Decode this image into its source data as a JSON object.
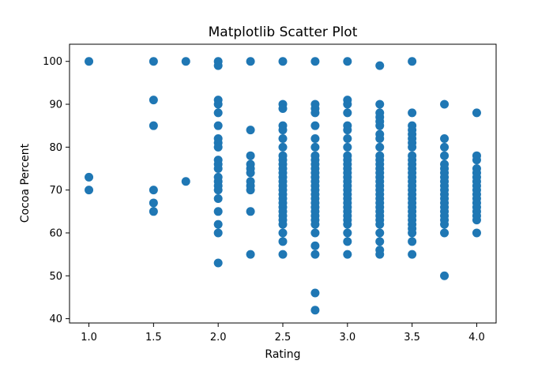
{
  "chart_data": {
    "type": "scatter",
    "title": "Matplotlib Scatter Plot",
    "xlabel": "Rating",
    "ylabel": "Cocoa Percent",
    "xlim": [
      0.85,
      4.15
    ],
    "ylim": [
      39,
      104
    ],
    "xticks": [
      1.0,
      1.5,
      2.0,
      2.5,
      3.0,
      3.5,
      4.0
    ],
    "xtick_labels": [
      "1.0",
      "1.5",
      "2.0",
      "2.5",
      "3.0",
      "3.5",
      "4.0"
    ],
    "yticks": [
      40,
      50,
      60,
      70,
      80,
      90,
      100
    ],
    "ytick_labels": [
      "40",
      "50",
      "60",
      "70",
      "80",
      "90",
      "100"
    ],
    "grid": false,
    "marker_color": "#1f77b4",
    "points": [
      {
        "x": 1.0,
        "y": 100
      },
      {
        "x": 1.0,
        "y": 73
      },
      {
        "x": 1.0,
        "y": 70
      },
      {
        "x": 1.5,
        "y": 100
      },
      {
        "x": 1.5,
        "y": 91
      },
      {
        "x": 1.5,
        "y": 85
      },
      {
        "x": 1.5,
        "y": 70
      },
      {
        "x": 1.5,
        "y": 67
      },
      {
        "x": 1.5,
        "y": 65
      },
      {
        "x": 1.75,
        "y": 100
      },
      {
        "x": 1.75,
        "y": 72
      },
      {
        "x": 2.0,
        "y": 100
      },
      {
        "x": 2.0,
        "y": 99
      },
      {
        "x": 2.0,
        "y": 91
      },
      {
        "x": 2.0,
        "y": 90
      },
      {
        "x": 2.0,
        "y": 88
      },
      {
        "x": 2.0,
        "y": 85
      },
      {
        "x": 2.0,
        "y": 82
      },
      {
        "x": 2.0,
        "y": 81
      },
      {
        "x": 2.0,
        "y": 80
      },
      {
        "x": 2.0,
        "y": 77
      },
      {
        "x": 2.0,
        "y": 76
      },
      {
        "x": 2.0,
        "y": 75
      },
      {
        "x": 2.0,
        "y": 73
      },
      {
        "x": 2.0,
        "y": 72
      },
      {
        "x": 2.0,
        "y": 71
      },
      {
        "x": 2.0,
        "y": 70
      },
      {
        "x": 2.0,
        "y": 68
      },
      {
        "x": 2.0,
        "y": 65
      },
      {
        "x": 2.0,
        "y": 62
      },
      {
        "x": 2.0,
        "y": 60
      },
      {
        "x": 2.0,
        "y": 53
      },
      {
        "x": 2.25,
        "y": 100
      },
      {
        "x": 2.25,
        "y": 84
      },
      {
        "x": 2.25,
        "y": 78
      },
      {
        "x": 2.25,
        "y": 76
      },
      {
        "x": 2.25,
        "y": 75
      },
      {
        "x": 2.25,
        "y": 74
      },
      {
        "x": 2.25,
        "y": 72
      },
      {
        "x": 2.25,
        "y": 71
      },
      {
        "x": 2.25,
        "y": 70
      },
      {
        "x": 2.25,
        "y": 65
      },
      {
        "x": 2.25,
        "y": 55
      },
      {
        "x": 2.5,
        "y": 100
      },
      {
        "x": 2.5,
        "y": 90
      },
      {
        "x": 2.5,
        "y": 89
      },
      {
        "x": 2.5,
        "y": 85
      },
      {
        "x": 2.5,
        "y": 84
      },
      {
        "x": 2.5,
        "y": 82
      },
      {
        "x": 2.5,
        "y": 80
      },
      {
        "x": 2.5,
        "y": 78
      },
      {
        "x": 2.5,
        "y": 77
      },
      {
        "x": 2.5,
        "y": 76
      },
      {
        "x": 2.5,
        "y": 75
      },
      {
        "x": 2.5,
        "y": 74
      },
      {
        "x": 2.5,
        "y": 73
      },
      {
        "x": 2.5,
        "y": 72
      },
      {
        "x": 2.5,
        "y": 71
      },
      {
        "x": 2.5,
        "y": 70
      },
      {
        "x": 2.5,
        "y": 69
      },
      {
        "x": 2.5,
        "y": 68
      },
      {
        "x": 2.5,
        "y": 67
      },
      {
        "x": 2.5,
        "y": 66
      },
      {
        "x": 2.5,
        "y": 65
      },
      {
        "x": 2.5,
        "y": 64
      },
      {
        "x": 2.5,
        "y": 63
      },
      {
        "x": 2.5,
        "y": 62
      },
      {
        "x": 2.5,
        "y": 60
      },
      {
        "x": 2.5,
        "y": 58
      },
      {
        "x": 2.5,
        "y": 55
      },
      {
        "x": 2.75,
        "y": 100
      },
      {
        "x": 2.75,
        "y": 90
      },
      {
        "x": 2.75,
        "y": 89
      },
      {
        "x": 2.75,
        "y": 88
      },
      {
        "x": 2.75,
        "y": 85
      },
      {
        "x": 2.75,
        "y": 82
      },
      {
        "x": 2.75,
        "y": 80
      },
      {
        "x": 2.75,
        "y": 78
      },
      {
        "x": 2.75,
        "y": 77
      },
      {
        "x": 2.75,
        "y": 76
      },
      {
        "x": 2.75,
        "y": 75
      },
      {
        "x": 2.75,
        "y": 74
      },
      {
        "x": 2.75,
        "y": 73
      },
      {
        "x": 2.75,
        "y": 72
      },
      {
        "x": 2.75,
        "y": 71
      },
      {
        "x": 2.75,
        "y": 70
      },
      {
        "x": 2.75,
        "y": 69
      },
      {
        "x": 2.75,
        "y": 68
      },
      {
        "x": 2.75,
        "y": 67
      },
      {
        "x": 2.75,
        "y": 66
      },
      {
        "x": 2.75,
        "y": 65
      },
      {
        "x": 2.75,
        "y": 64
      },
      {
        "x": 2.75,
        "y": 63
      },
      {
        "x": 2.75,
        "y": 62
      },
      {
        "x": 2.75,
        "y": 60
      },
      {
        "x": 2.75,
        "y": 57
      },
      {
        "x": 2.75,
        "y": 55
      },
      {
        "x": 2.75,
        "y": 46
      },
      {
        "x": 2.75,
        "y": 42
      },
      {
        "x": 3.0,
        "y": 100
      },
      {
        "x": 3.0,
        "y": 91
      },
      {
        "x": 3.0,
        "y": 90
      },
      {
        "x": 3.0,
        "y": 88
      },
      {
        "x": 3.0,
        "y": 85
      },
      {
        "x": 3.0,
        "y": 84
      },
      {
        "x": 3.0,
        "y": 82
      },
      {
        "x": 3.0,
        "y": 80
      },
      {
        "x": 3.0,
        "y": 78
      },
      {
        "x": 3.0,
        "y": 77
      },
      {
        "x": 3.0,
        "y": 76
      },
      {
        "x": 3.0,
        "y": 75
      },
      {
        "x": 3.0,
        "y": 74
      },
      {
        "x": 3.0,
        "y": 73
      },
      {
        "x": 3.0,
        "y": 72
      },
      {
        "x": 3.0,
        "y": 71
      },
      {
        "x": 3.0,
        "y": 70
      },
      {
        "x": 3.0,
        "y": 69
      },
      {
        "x": 3.0,
        "y": 68
      },
      {
        "x": 3.0,
        "y": 67
      },
      {
        "x": 3.0,
        "y": 66
      },
      {
        "x": 3.0,
        "y": 65
      },
      {
        "x": 3.0,
        "y": 64
      },
      {
        "x": 3.0,
        "y": 63
      },
      {
        "x": 3.0,
        "y": 62
      },
      {
        "x": 3.0,
        "y": 60
      },
      {
        "x": 3.0,
        "y": 58
      },
      {
        "x": 3.0,
        "y": 55
      },
      {
        "x": 3.25,
        "y": 99
      },
      {
        "x": 3.25,
        "y": 90
      },
      {
        "x": 3.25,
        "y": 88
      },
      {
        "x": 3.25,
        "y": 87
      },
      {
        "x": 3.25,
        "y": 86
      },
      {
        "x": 3.25,
        "y": 85
      },
      {
        "x": 3.25,
        "y": 83
      },
      {
        "x": 3.25,
        "y": 82
      },
      {
        "x": 3.25,
        "y": 80
      },
      {
        "x": 3.25,
        "y": 78
      },
      {
        "x": 3.25,
        "y": 77
      },
      {
        "x": 3.25,
        "y": 76
      },
      {
        "x": 3.25,
        "y": 75
      },
      {
        "x": 3.25,
        "y": 74
      },
      {
        "x": 3.25,
        "y": 73
      },
      {
        "x": 3.25,
        "y": 72
      },
      {
        "x": 3.25,
        "y": 71
      },
      {
        "x": 3.25,
        "y": 70
      },
      {
        "x": 3.25,
        "y": 69
      },
      {
        "x": 3.25,
        "y": 68
      },
      {
        "x": 3.25,
        "y": 67
      },
      {
        "x": 3.25,
        "y": 66
      },
      {
        "x": 3.25,
        "y": 65
      },
      {
        "x": 3.25,
        "y": 64
      },
      {
        "x": 3.25,
        "y": 63
      },
      {
        "x": 3.25,
        "y": 62
      },
      {
        "x": 3.25,
        "y": 60
      },
      {
        "x": 3.25,
        "y": 58
      },
      {
        "x": 3.25,
        "y": 56
      },
      {
        "x": 3.25,
        "y": 55
      },
      {
        "x": 3.5,
        "y": 100
      },
      {
        "x": 3.5,
        "y": 88
      },
      {
        "x": 3.5,
        "y": 85
      },
      {
        "x": 3.5,
        "y": 84
      },
      {
        "x": 3.5,
        "y": 83
      },
      {
        "x": 3.5,
        "y": 82
      },
      {
        "x": 3.5,
        "y": 81
      },
      {
        "x": 3.5,
        "y": 80
      },
      {
        "x": 3.5,
        "y": 78
      },
      {
        "x": 3.5,
        "y": 77
      },
      {
        "x": 3.5,
        "y": 76
      },
      {
        "x": 3.5,
        "y": 75
      },
      {
        "x": 3.5,
        "y": 74
      },
      {
        "x": 3.5,
        "y": 73
      },
      {
        "x": 3.5,
        "y": 72
      },
      {
        "x": 3.5,
        "y": 71
      },
      {
        "x": 3.5,
        "y": 70
      },
      {
        "x": 3.5,
        "y": 69
      },
      {
        "x": 3.5,
        "y": 68
      },
      {
        "x": 3.5,
        "y": 67
      },
      {
        "x": 3.5,
        "y": 66
      },
      {
        "x": 3.5,
        "y": 65
      },
      {
        "x": 3.5,
        "y": 64
      },
      {
        "x": 3.5,
        "y": 63
      },
      {
        "x": 3.5,
        "y": 62
      },
      {
        "x": 3.5,
        "y": 61
      },
      {
        "x": 3.5,
        "y": 60
      },
      {
        "x": 3.5,
        "y": 58
      },
      {
        "x": 3.5,
        "y": 55
      },
      {
        "x": 3.75,
        "y": 90
      },
      {
        "x": 3.75,
        "y": 82
      },
      {
        "x": 3.75,
        "y": 80
      },
      {
        "x": 3.75,
        "y": 78
      },
      {
        "x": 3.75,
        "y": 76
      },
      {
        "x": 3.75,
        "y": 75
      },
      {
        "x": 3.75,
        "y": 74
      },
      {
        "x": 3.75,
        "y": 73
      },
      {
        "x": 3.75,
        "y": 72
      },
      {
        "x": 3.75,
        "y": 71
      },
      {
        "x": 3.75,
        "y": 70
      },
      {
        "x": 3.75,
        "y": 69
      },
      {
        "x": 3.75,
        "y": 68
      },
      {
        "x": 3.75,
        "y": 67
      },
      {
        "x": 3.75,
        "y": 66
      },
      {
        "x": 3.75,
        "y": 65
      },
      {
        "x": 3.75,
        "y": 64
      },
      {
        "x": 3.75,
        "y": 63
      },
      {
        "x": 3.75,
        "y": 62
      },
      {
        "x": 3.75,
        "y": 60
      },
      {
        "x": 3.75,
        "y": 50
      },
      {
        "x": 4.0,
        "y": 88
      },
      {
        "x": 4.0,
        "y": 78
      },
      {
        "x": 4.0,
        "y": 77
      },
      {
        "x": 4.0,
        "y": 75
      },
      {
        "x": 4.0,
        "y": 74
      },
      {
        "x": 4.0,
        "y": 73
      },
      {
        "x": 4.0,
        "y": 72
      },
      {
        "x": 4.0,
        "y": 71
      },
      {
        "x": 4.0,
        "y": 70
      },
      {
        "x": 4.0,
        "y": 69
      },
      {
        "x": 4.0,
        "y": 68
      },
      {
        "x": 4.0,
        "y": 67
      },
      {
        "x": 4.0,
        "y": 66
      },
      {
        "x": 4.0,
        "y": 65
      },
      {
        "x": 4.0,
        "y": 64
      },
      {
        "x": 4.0,
        "y": 63
      },
      {
        "x": 4.0,
        "y": 60
      }
    ]
  }
}
